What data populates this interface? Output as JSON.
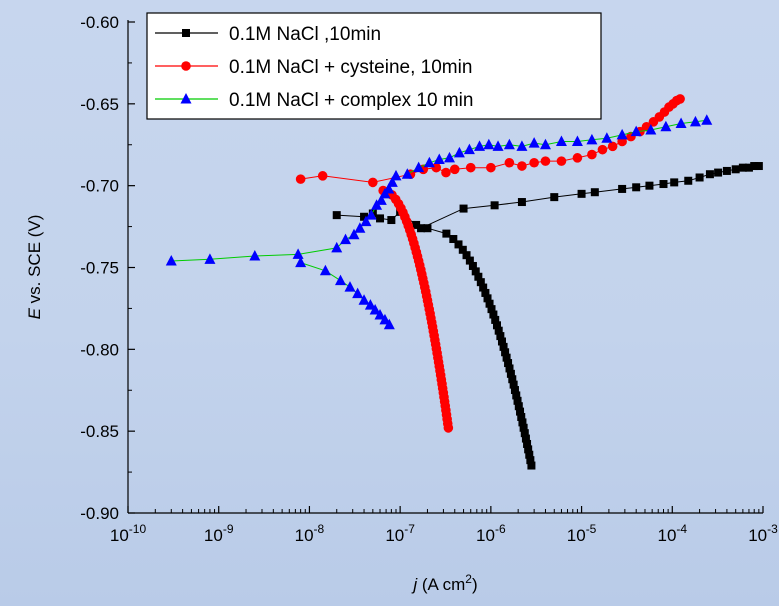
{
  "chart_data": {
    "type": "scatter",
    "title": "",
    "xlabel": {
      "var": "j",
      "unit_open": " (A cm",
      "unit_sup": "2",
      "unit_close": ")"
    },
    "ylabel": {
      "var": "E",
      "rest": " vs. SCE (V)"
    },
    "x_scale": "log",
    "xlim": [
      1e-10,
      0.001
    ],
    "ylim": [
      -0.9,
      -0.6
    ],
    "x_ticks": [
      {
        "base": "10",
        "exp": "-10",
        "value": 1e-10
      },
      {
        "base": "10",
        "exp": "-9",
        "value": 1e-09
      },
      {
        "base": "10",
        "exp": "-8",
        "value": 1e-08
      },
      {
        "base": "10",
        "exp": "-7",
        "value": 1e-07
      },
      {
        "base": "10",
        "exp": "-6",
        "value": 1e-06
      },
      {
        "base": "10",
        "exp": "-5",
        "value": 1e-05
      },
      {
        "base": "10",
        "exp": "-4",
        "value": 0.0001
      },
      {
        "base": "10",
        "exp": "-3",
        "value": 0.001
      }
    ],
    "y_ticks": [
      "-0.60",
      "-0.65",
      "-0.70",
      "-0.75",
      "-0.80",
      "-0.85",
      "-0.90"
    ],
    "y_tick_values": [
      -0.6,
      -0.65,
      -0.7,
      -0.75,
      -0.8,
      -0.85,
      -0.9
    ],
    "grid": false,
    "legend_position": "top-left",
    "series": [
      {
        "name": "0.1M NaCl ,10min",
        "marker": "square",
        "color": "#000000",
        "cathodic": {
          "j_start": 2e-07,
          "j_end": 2.8e-06,
          "e_start": -0.726,
          "e_end": -0.871,
          "n": 45,
          "shape": 0.45
        },
        "anodic": [
          [
            2e-08,
            -0.718
          ],
          [
            4e-08,
            -0.719
          ],
          [
            5e-08,
            -0.717
          ],
          [
            6e-08,
            -0.72
          ],
          [
            8e-08,
            -0.721
          ],
          [
            1e-07,
            -0.716
          ],
          [
            1.5e-07,
            -0.724
          ],
          [
            1.7e-07,
            -0.726
          ],
          [
            5e-07,
            -0.714
          ],
          [
            1.1e-06,
            -0.712
          ],
          [
            2.2e-06,
            -0.71
          ],
          [
            5e-06,
            -0.707
          ],
          [
            1e-05,
            -0.705
          ],
          [
            1.4e-05,
            -0.704
          ],
          [
            2.8e-05,
            -0.702
          ],
          [
            4e-05,
            -0.701
          ],
          [
            5.6e-05,
            -0.7
          ],
          [
            8e-05,
            -0.699
          ],
          [
            0.000105,
            -0.698
          ],
          [
            0.00015,
            -0.697
          ],
          [
            0.0002,
            -0.695
          ],
          [
            0.00026,
            -0.693
          ],
          [
            0.00032,
            -0.692
          ],
          [
            0.0004,
            -0.691
          ],
          [
            0.0005,
            -0.69
          ],
          [
            0.0006,
            -0.689
          ],
          [
            0.0007,
            -0.689
          ],
          [
            0.0008,
            -0.688
          ],
          [
            0.0009,
            -0.688
          ]
        ]
      },
      {
        "name": "0.1M NaCl + cysteine, 10min",
        "marker": "circle",
        "color": "#ff0000",
        "cathodic": {
          "j_start": 6.5e-08,
          "j_end": 3.4e-07,
          "e_start": -0.703,
          "e_end": -0.848,
          "n": 55,
          "shape": 0.5
        },
        "anodic": [
          [
            8e-09,
            -0.696
          ],
          [
            1.4e-08,
            -0.694
          ],
          [
            5e-08,
            -0.698
          ],
          [
            1.3e-07,
            -0.693
          ],
          [
            1.8e-07,
            -0.69
          ],
          [
            2.5e-07,
            -0.689
          ],
          [
            3.2e-07,
            -0.692
          ],
          [
            4e-07,
            -0.69
          ],
          [
            6e-07,
            -0.689
          ],
          [
            1e-06,
            -0.689
          ],
          [
            1.6e-06,
            -0.686
          ],
          [
            2.2e-06,
            -0.688
          ],
          [
            3e-06,
            -0.686
          ],
          [
            4e-06,
            -0.685
          ],
          [
            6e-06,
            -0.685
          ],
          [
            9e-06,
            -0.683
          ],
          [
            1.3e-05,
            -0.681
          ],
          [
            1.7e-05,
            -0.678
          ],
          [
            2.2e-05,
            -0.676
          ],
          [
            2.8e-05,
            -0.673
          ],
          [
            3.5e-05,
            -0.67
          ],
          [
            4.4e-05,
            -0.667
          ],
          [
            5.2e-05,
            -0.664
          ],
          [
            6.2e-05,
            -0.661
          ],
          [
            7.2e-05,
            -0.658
          ],
          [
            8.2e-05,
            -0.655
          ],
          [
            9.2e-05,
            -0.652
          ],
          [
            0.000102,
            -0.65
          ],
          [
            0.000112,
            -0.648
          ],
          [
            0.000122,
            -0.647
          ]
        ]
      },
      {
        "name": "0.1M NaCl + complex 10 min",
        "marker": "triangle",
        "color": "#0000ff",
        "upper_cathodic": [
          [
            3e-10,
            -0.746
          ],
          [
            8e-10,
            -0.745
          ],
          [
            2.5e-09,
            -0.743
          ],
          [
            7.5e-09,
            -0.742
          ],
          [
            2e-08,
            -0.738
          ],
          [
            2.5e-08,
            -0.733
          ],
          [
            3.1e-08,
            -0.73
          ],
          [
            3.6e-08,
            -0.726
          ],
          [
            4.2e-08,
            -0.722
          ],
          [
            4.8e-08,
            -0.718
          ],
          [
            5.5e-08,
            -0.712
          ],
          [
            6.2e-08,
            -0.709
          ],
          [
            6.8e-08,
            -0.705
          ],
          [
            7.5e-08,
            -0.702
          ],
          [
            8.2e-08,
            -0.698
          ],
          [
            9e-08,
            -0.694
          ]
        ],
        "lower_cathodic": [
          [
            8e-09,
            -0.747
          ],
          [
            1.5e-08,
            -0.752
          ],
          [
            2.2e-08,
            -0.758
          ],
          [
            2.8e-08,
            -0.762
          ],
          [
            3.4e-08,
            -0.766
          ],
          [
            4e-08,
            -0.77
          ],
          [
            4.7e-08,
            -0.773
          ],
          [
            5.3e-08,
            -0.776
          ],
          [
            6e-08,
            -0.779
          ],
          [
            6.8e-08,
            -0.782
          ],
          [
            7.6e-08,
            -0.785
          ]
        ],
        "anodic": [
          [
            1.2e-07,
            -0.693
          ],
          [
            1.6e-07,
            -0.689
          ],
          [
            2.1e-07,
            -0.686
          ],
          [
            2.7e-07,
            -0.684
          ],
          [
            3.5e-07,
            -0.683
          ],
          [
            4.5e-07,
            -0.68
          ],
          [
            5.8e-07,
            -0.678
          ],
          [
            7.5e-07,
            -0.676
          ],
          [
            9.5e-07,
            -0.675
          ],
          [
            1.2e-06,
            -0.676
          ],
          [
            1.6e-06,
            -0.675
          ],
          [
            2.2e-06,
            -0.676
          ],
          [
            3e-06,
            -0.674
          ],
          [
            4e-06,
            -0.675
          ],
          [
            6e-06,
            -0.673
          ],
          [
            9e-06,
            -0.673
          ],
          [
            1.3e-05,
            -0.672
          ],
          [
            1.9e-05,
            -0.671
          ],
          [
            2.8e-05,
            -0.669
          ],
          [
            4e-05,
            -0.667
          ],
          [
            5.8e-05,
            -0.666
          ],
          [
            8.5e-05,
            -0.664
          ],
          [
            0.000125,
            -0.662
          ],
          [
            0.00018,
            -0.661
          ],
          [
            0.00024,
            -0.66
          ]
        ]
      }
    ]
  }
}
